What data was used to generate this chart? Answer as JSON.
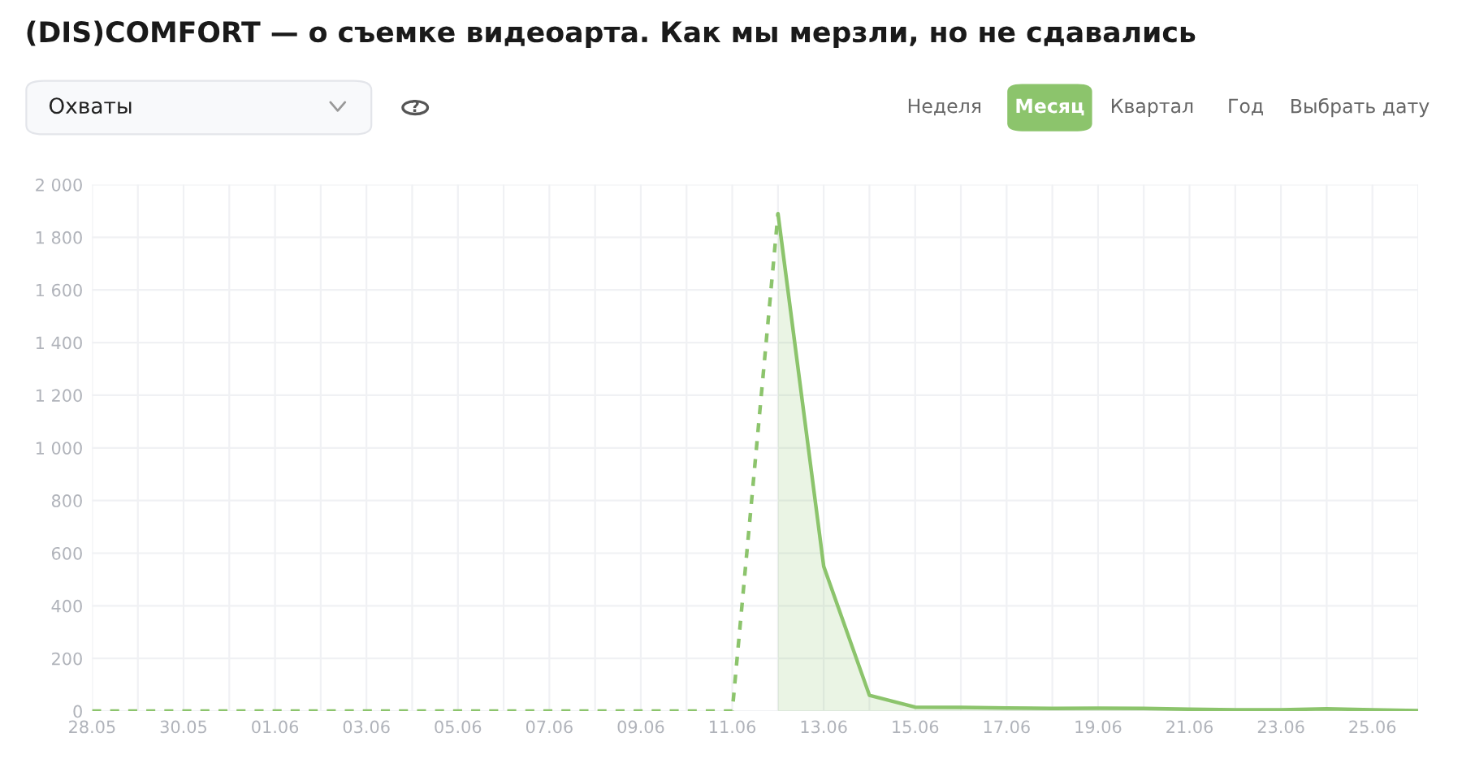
{
  "chart_data": {
    "type": "line",
    "title": "(DIS)COMFORT — о съемке видеоарта. Как мы мерзли, но не сдавались",
    "annotations": [
      "Охваты",
      "?",
      "Неделя",
      "Месяц",
      "Квартал",
      "Год",
      "Выбрать дату"
    ],
    "categories": [
      "28.05",
      null,
      "30.05",
      null,
      "01.06",
      null,
      "03.06",
      null,
      "05.06",
      null,
      "07.06",
      null,
      "09.06",
      null,
      "11.06",
      null,
      "13.06",
      null,
      "15.06",
      null,
      "17.06",
      null,
      "19.06",
      null,
      "21.06",
      null,
      "23.06",
      null,
      "25.06",
      null
    ],
    "series": [
      {
        "line_style": "dashed",
        "color": "#8cc46c",
        "values": [
          0,
          0,
          0,
          0,
          0,
          0,
          0,
          0,
          0,
          0,
          0,
          0,
          0,
          0,
          0,
          1890,
          null,
          null,
          null,
          null,
          null,
          null,
          null,
          null,
          null,
          null,
          null,
          null,
          null,
          null
        ]
      },
      {
        "type": "area",
        "line_style": "solid",
        "color": "#8cc46c",
        "values": [
          null,
          null,
          null,
          null,
          null,
          null,
          null,
          null,
          null,
          null,
          null,
          null,
          null,
          null,
          null,
          1890,
          550,
          60,
          15,
          14,
          12,
          10,
          11,
          10,
          7,
          5,
          5,
          9,
          5,
          2
        ]
      }
    ],
    "ylim": [
      0,
      2000
    ],
    "yticks": [
      0,
      200,
      400,
      600,
      800,
      {
        "value": 1000,
        "label": "1 000"
      },
      {
        "value": 1200,
        "label": "1 200"
      },
      {
        "value": 1400,
        "label": "1 400"
      },
      {
        "value": 1600,
        "label": "1 600"
      },
      {
        "value": 1800,
        "label": "1 800"
      },
      {
        "value": 2000,
        "label": "2 000"
      }
    ],
    "grid": true,
    "legend": false
  }
}
